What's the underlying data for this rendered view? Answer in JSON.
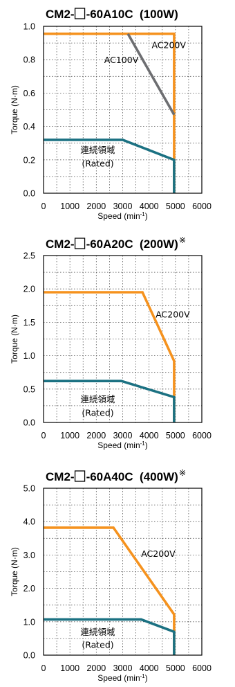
{
  "colors": {
    "ac200v": "#F5921E",
    "ac100v": "#6D6E71",
    "rated": "#1B7182"
  },
  "chart_data": [
    {
      "type": "line",
      "title_prefix": "CM2-",
      "title_suffix": "-60A10C  (100W)",
      "title_mark": "",
      "xlabel": "Speed (min",
      "xlabel_sup": "-1",
      "xlabel_end": ")",
      "ylabel": "Torque (N·m)",
      "xlim": [
        0,
        6000
      ],
      "ylim": [
        0,
        1.0
      ],
      "xticks": [
        0,
        1000,
        2000,
        3000,
        4000,
        5000,
        6000
      ],
      "yticks": [
        "0.0",
        "0.2",
        "0.4",
        "0.6",
        "0.8",
        "1.0"
      ],
      "grid": true,
      "series": [
        {
          "name": "AC200V",
          "color": "ac200v",
          "x": [
            0,
            4950,
            4950
          ],
          "y": [
            0.955,
            0.955,
            0
          ]
        },
        {
          "name": "AC100V",
          "color": "ac100v",
          "x": [
            3200,
            4950
          ],
          "y": [
            0.955,
            0.47
          ]
        },
        {
          "name": "連続領域",
          "color": "rated",
          "x": [
            0,
            3000,
            4950,
            4950
          ],
          "y": [
            0.32,
            0.32,
            0.2,
            0
          ]
        }
      ],
      "annotations": [
        {
          "text": "AC200V",
          "x": 4100,
          "y": 0.87
        },
        {
          "text": "AC100V",
          "x": 2300,
          "y": 0.78
        },
        {
          "text": "連続領域",
          "x": 1400,
          "y": 0.24
        },
        {
          "text": "(Rated)",
          "x": 1450,
          "y": 0.16
        }
      ]
    },
    {
      "type": "line",
      "title_prefix": "CM2-",
      "title_suffix": "-60A20C  (200W)",
      "title_mark": "※",
      "xlabel": "Speed (min",
      "xlabel_sup": "-1",
      "xlabel_end": ")",
      "ylabel": "Torque (N·m)",
      "xlim": [
        0,
        6000
      ],
      "ylim": [
        0,
        2.5
      ],
      "xticks": [
        0,
        1000,
        2000,
        3000,
        4000,
        5000,
        6000
      ],
      "yticks": [
        "0.0",
        "0.5",
        "1.0",
        "1.5",
        "2.0",
        "2.5"
      ],
      "grid": true,
      "series": [
        {
          "name": "AC200V",
          "color": "ac200v",
          "x": [
            0,
            3750,
            4950,
            4950
          ],
          "y": [
            1.95,
            1.95,
            0.92,
            0
          ]
        },
        {
          "name": "連続領域",
          "color": "rated",
          "x": [
            0,
            2950,
            4950,
            4950
          ],
          "y": [
            0.62,
            0.62,
            0.38,
            0
          ]
        }
      ],
      "annotations": [
        {
          "text": "AC200V",
          "x": 4250,
          "y": 1.57
        },
        {
          "text": "連続領域",
          "x": 1400,
          "y": 0.3
        },
        {
          "text": "(Rated)",
          "x": 1450,
          "y": 0.1
        }
      ]
    },
    {
      "type": "line",
      "title_prefix": "CM2-",
      "title_suffix": "-60A40C  (400W)",
      "title_mark": "※",
      "xlabel": "Speed (min",
      "xlabel_sup": "-1",
      "xlabel_end": ")",
      "ylabel": "Torque (N·m)",
      "xlim": [
        0,
        6000
      ],
      "ylim": [
        0,
        5.0
      ],
      "xticks": [
        0,
        1000,
        2000,
        3000,
        4000,
        5000,
        6000
      ],
      "yticks": [
        "0.0",
        "1.0",
        "2.0",
        "3.0",
        "4.0",
        "5.0"
      ],
      "grid": true,
      "series": [
        {
          "name": "AC200V",
          "color": "ac200v",
          "x": [
            0,
            2650,
            4950,
            4950
          ],
          "y": [
            3.82,
            3.82,
            1.22,
            0
          ]
        },
        {
          "name": "連続領域",
          "color": "rated",
          "x": [
            0,
            3700,
            4950,
            4950
          ],
          "y": [
            1.07,
            1.07,
            0.7,
            0
          ]
        }
      ],
      "annotations": [
        {
          "text": "AC200V",
          "x": 3700,
          "y": 2.95
        },
        {
          "text": "連続領域",
          "x": 1400,
          "y": 0.6
        },
        {
          "text": "(Rated)",
          "x": 1450,
          "y": 0.22
        }
      ]
    }
  ]
}
